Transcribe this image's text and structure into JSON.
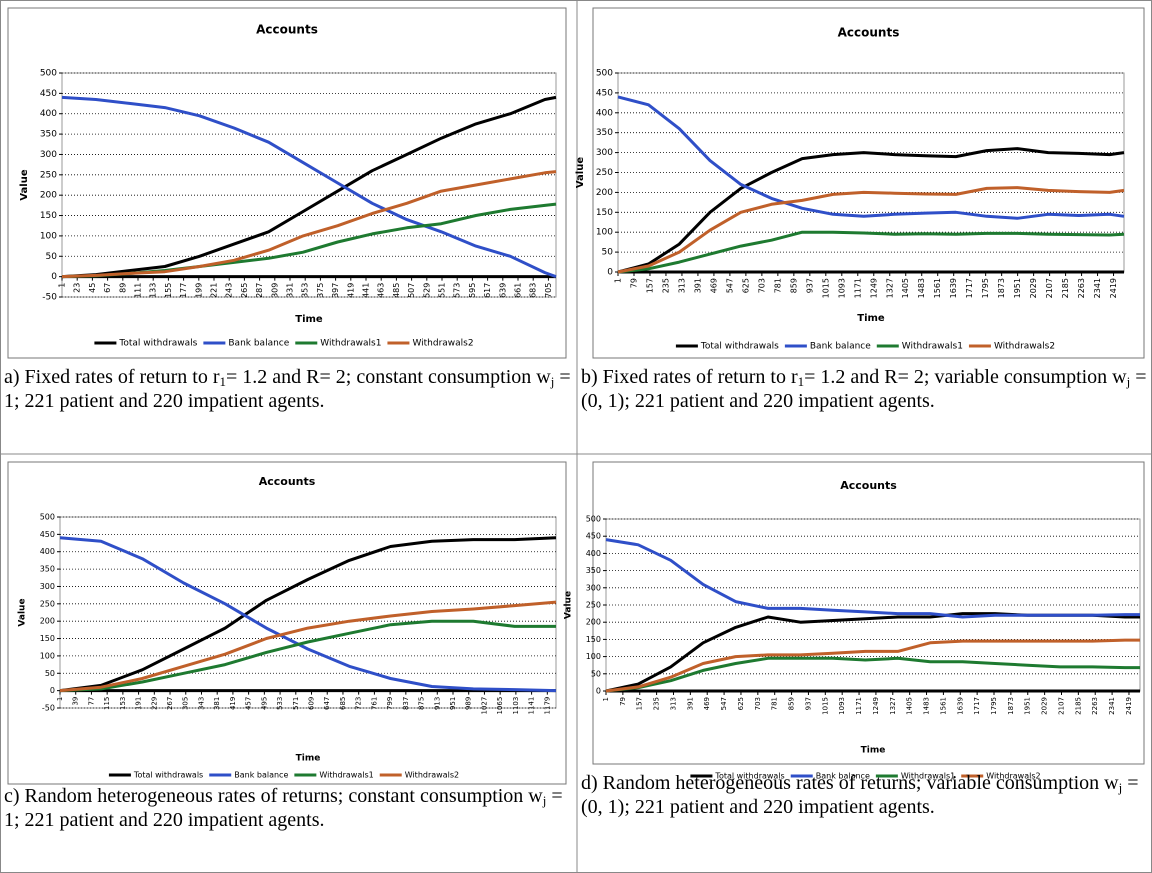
{
  "chart_data": [
    {
      "type": "line",
      "title": "Accounts",
      "xlabel": "Time",
      "ylabel": "Value",
      "grid": true,
      "legend": "bottom",
      "caption": [
        "a) Fixed rates of return to r",
        "1",
        "= 1.2 and R= 2; constant consumption w",
        "j",
        " = 1; 221 patient and 220 impatient agents."
      ],
      "xlim": [
        1,
        716
      ],
      "ylim": [
        -50,
        500
      ],
      "yticks": [
        -50,
        0,
        50,
        100,
        150,
        200,
        250,
        300,
        350,
        400,
        450,
        500
      ],
      "xticks": [
        1,
        23,
        45,
        67,
        89,
        111,
        133,
        155,
        177,
        199,
        221,
        243,
        265,
        287,
        309,
        331,
        353,
        375,
        397,
        419,
        441,
        463,
        485,
        507,
        529,
        551,
        573,
        595,
        617,
        639,
        661,
        683,
        705
      ],
      "x": [
        1,
        50,
        100,
        150,
        200,
        250,
        300,
        350,
        400,
        450,
        500,
        550,
        600,
        650,
        700,
        716
      ],
      "series": [
        {
          "name": "Total withdrawals",
          "color": "#000000",
          "values": [
            0,
            5,
            15,
            25,
            50,
            80,
            110,
            160,
            210,
            260,
            300,
            340,
            375,
            400,
            435,
            440
          ]
        },
        {
          "name": "Bank balance",
          "color": "#2f4fc8",
          "values": [
            440,
            435,
            425,
            415,
            395,
            365,
            330,
            280,
            230,
            180,
            140,
            110,
            75,
            50,
            10,
            0
          ]
        },
        {
          "name": "Withdrawals1",
          "color": "#1e7a30",
          "values": [
            0,
            2,
            8,
            15,
            25,
            35,
            45,
            60,
            85,
            105,
            120,
            130,
            150,
            165,
            175,
            178
          ]
        },
        {
          "name": "Withdrawals2",
          "color": "#c0602a",
          "values": [
            0,
            3,
            8,
            12,
            25,
            40,
            65,
            100,
            125,
            155,
            180,
            210,
            225,
            240,
            255,
            258
          ]
        }
      ]
    },
    {
      "type": "line",
      "title": "Accounts",
      "xlabel": "Time",
      "ylabel": "Value",
      "grid": true,
      "legend": "bottom",
      "caption": [
        "b) Fixed rates of return to r",
        "1",
        "= 1.2 and R= 2; variable consumption w",
        "j",
        " =(0, 1); 221 patient and 220 impatient agents."
      ],
      "xlim": [
        1,
        2470
      ],
      "ylim": [
        0,
        500
      ],
      "yticks": [
        0,
        50,
        100,
        150,
        200,
        250,
        300,
        350,
        400,
        450,
        500
      ],
      "xticks": [
        1,
        79,
        157,
        235,
        313,
        391,
        469,
        547,
        625,
        703,
        781,
        859,
        937,
        1015,
        1093,
        1171,
        1249,
        1327,
        1405,
        1483,
        1561,
        1639,
        1717,
        1795,
        1873,
        1951,
        2029,
        2107,
        2185,
        2263,
        2341,
        2419
      ],
      "x": [
        1,
        150,
        300,
        450,
        600,
        750,
        900,
        1050,
        1200,
        1350,
        1500,
        1650,
        1800,
        1950,
        2100,
        2250,
        2400,
        2470
      ],
      "series": [
        {
          "name": "Total withdrawals",
          "color": "#000000",
          "values": [
            0,
            20,
            70,
            150,
            210,
            250,
            285,
            295,
            300,
            295,
            292,
            290,
            305,
            310,
            300,
            298,
            295,
            300
          ]
        },
        {
          "name": "Bank balance",
          "color": "#2f4fc8",
          "values": [
            440,
            420,
            360,
            280,
            220,
            185,
            160,
            145,
            140,
            145,
            148,
            150,
            140,
            135,
            145,
            142,
            145,
            140
          ]
        },
        {
          "name": "Withdrawals1",
          "color": "#1e7a30",
          "values": [
            0,
            8,
            25,
            45,
            65,
            80,
            100,
            100,
            98,
            95,
            96,
            95,
            97,
            97,
            95,
            94,
            93,
            95
          ]
        },
        {
          "name": "Withdrawals2",
          "color": "#c0602a",
          "values": [
            0,
            15,
            50,
            105,
            150,
            170,
            180,
            195,
            200,
            198,
            196,
            195,
            210,
            212,
            205,
            202,
            200,
            205
          ]
        }
      ]
    },
    {
      "type": "line",
      "title": "Accounts",
      "xlabel": "Time",
      "ylabel": "Value",
      "grid": true,
      "legend": "bottom",
      "caption": [
        "c) Random heterogeneous rates of returns; constant consumption w",
        "j",
        " = 1; 221 patient and 220 impatient agents."
      ],
      "xlim": [
        1,
        1200
      ],
      "ylim": [
        -50,
        500
      ],
      "yticks": [
        -50,
        0,
        50,
        100,
        150,
        200,
        250,
        300,
        350,
        400,
        450,
        500
      ],
      "xticks": [
        1,
        39,
        77,
        115,
        153,
        191,
        229,
        267,
        305,
        343,
        381,
        419,
        457,
        495,
        533,
        571,
        609,
        647,
        685,
        723,
        761,
        799,
        837,
        875,
        913,
        951,
        989,
        1027,
        1065,
        1103,
        1141,
        1179
      ],
      "x": [
        1,
        100,
        200,
        300,
        400,
        500,
        600,
        700,
        800,
        900,
        1000,
        1100,
        1200
      ],
      "series": [
        {
          "name": "Total withdrawals",
          "color": "#000000",
          "values": [
            0,
            15,
            60,
            120,
            180,
            260,
            320,
            375,
            415,
            430,
            435,
            435,
            440
          ]
        },
        {
          "name": "Bank balance",
          "color": "#2f4fc8",
          "values": [
            440,
            430,
            380,
            310,
            250,
            180,
            120,
            70,
            35,
            12,
            5,
            3,
            0
          ]
        },
        {
          "name": "Withdrawals1",
          "color": "#1e7a30",
          "values": [
            0,
            5,
            25,
            50,
            75,
            110,
            140,
            165,
            190,
            200,
            200,
            185,
            185
          ]
        },
        {
          "name": "Withdrawals2",
          "color": "#c0602a",
          "values": [
            0,
            10,
            35,
            70,
            105,
            150,
            180,
            200,
            215,
            228,
            235,
            245,
            255
          ]
        }
      ]
    },
    {
      "type": "line",
      "title": "Accounts",
      "xlabel": "Time",
      "ylabel": "Value",
      "grid": true,
      "legend": "bottom",
      "caption": [
        "d) Random heterogeneous rates of returns; variable consumption w",
        "j",
        " =(0, 1); 221 patient and 220 impatient agents."
      ],
      "xlim": [
        1,
        2470
      ],
      "ylim": [
        0,
        500
      ],
      "yticks": [
        0,
        50,
        100,
        150,
        200,
        250,
        300,
        350,
        400,
        450,
        500
      ],
      "xticks": [
        1,
        79,
        157,
        235,
        313,
        391,
        469,
        547,
        625,
        703,
        781,
        859,
        937,
        1015,
        1093,
        1171,
        1249,
        1327,
        1405,
        1483,
        1561,
        1639,
        1717,
        1795,
        1873,
        1951,
        2029,
        2107,
        2185,
        2263,
        2341,
        2419
      ],
      "x": [
        1,
        150,
        300,
        450,
        600,
        750,
        900,
        1050,
        1200,
        1350,
        1500,
        1650,
        1800,
        1950,
        2100,
        2250,
        2400,
        2470
      ],
      "series": [
        {
          "name": "Total withdrawals",
          "color": "#000000",
          "values": [
            0,
            20,
            70,
            140,
            185,
            215,
            200,
            205,
            210,
            215,
            215,
            225,
            225,
            220,
            220,
            220,
            215,
            215
          ]
        },
        {
          "name": "Bank balance",
          "color": "#2f4fc8",
          "values": [
            440,
            425,
            380,
            310,
            260,
            240,
            240,
            235,
            230,
            225,
            225,
            215,
            220,
            220,
            220,
            220,
            222,
            222
          ]
        },
        {
          "name": "Withdrawals1",
          "color": "#1e7a30",
          "values": [
            0,
            10,
            30,
            60,
            80,
            95,
            95,
            95,
            90,
            95,
            85,
            85,
            80,
            75,
            70,
            70,
            68,
            68
          ]
        },
        {
          "name": "Withdrawals2",
          "color": "#c0602a",
          "values": [
            0,
            12,
            40,
            80,
            100,
            105,
            105,
            110,
            115,
            115,
            140,
            145,
            145,
            145,
            145,
            145,
            148,
            148
          ]
        }
      ]
    }
  ]
}
